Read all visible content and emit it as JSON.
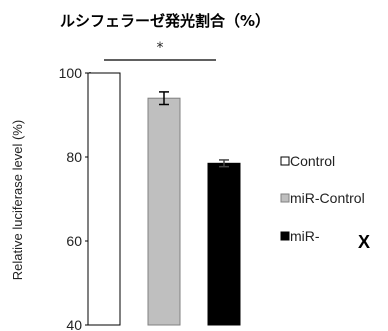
{
  "chart_data": {
    "type": "bar",
    "title": "ルシフェラーゼ発光割合（%）",
    "ylabel": "Relative luciferase level (%)",
    "xlabel": "",
    "ylim": [
      40,
      100
    ],
    "yticks": [
      40,
      60,
      80,
      100
    ],
    "categories": [
      "Control",
      "miR-Control",
      "miR-X"
    ],
    "values": [
      100,
      94,
      78.5
    ],
    "errors": [
      0,
      1.5,
      0.8
    ],
    "colors": [
      "#ffffff",
      "#bfbfbf",
      "#000000"
    ],
    "significance": {
      "marker": "*",
      "from": 0,
      "to": 2
    },
    "legend": {
      "placement": "right",
      "entries": [
        "Control",
        "miR-Control",
        "miR-"
      ]
    },
    "extra_label": "X",
    "grid": false
  }
}
